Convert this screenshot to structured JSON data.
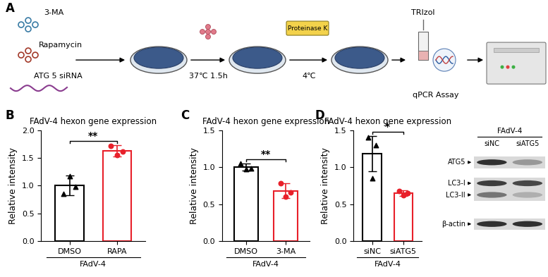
{
  "panel_labels": [
    "A",
    "B",
    "C",
    "D"
  ],
  "diagram": {
    "treatments": [
      "3-MA",
      "Rapamycin",
      "ATG 5 siRNA"
    ],
    "steps": [
      "37℃ 1.5h",
      "Proteinase K",
      "4℃",
      "TRIzol",
      "qPCR Assay"
    ]
  },
  "chart_data": [
    {
      "type": "bar",
      "title": "FAdV-4 hexon gene expression",
      "ylabel": "Relative intensity",
      "xlabel": "FAdV-4",
      "categories": [
        "DMSO",
        "RAPA"
      ],
      "values": [
        1.0,
        1.63
      ],
      "errors": [
        0.18,
        0.1
      ],
      "points": [
        [
          0.85,
          1.17,
          0.98
        ],
        [
          1.72,
          1.55,
          1.62
        ]
      ],
      "colors": [
        "#000000",
        "#e8202a"
      ],
      "markers": [
        "triangle",
        "circle"
      ],
      "ylim": [
        0,
        2.0
      ],
      "yticks": [
        {
          "value": 0,
          "label": "0.0"
        },
        {
          "value": 0.5,
          "label": "0.5"
        },
        {
          "value": 1.0,
          "label": "1.0"
        },
        {
          "value": 1.5,
          "label": "1.5"
        },
        {
          "value": 2.0,
          "label": "2.0"
        }
      ],
      "annotation": "**"
    },
    {
      "type": "bar",
      "title": "FAdV-4 hexon gene expression",
      "ylabel": "Relative intensity",
      "xlabel": "FAdV-4",
      "categories": [
        "DMSO",
        "3-MA"
      ],
      "values": [
        1.0,
        0.68
      ],
      "errors": [
        0.05,
        0.1
      ],
      "points": [
        [
          1.05,
          0.97,
          0.98
        ],
        [
          0.78,
          0.6,
          0.66
        ]
      ],
      "colors": [
        "#000000",
        "#e8202a"
      ],
      "markers": [
        "triangle",
        "circle"
      ],
      "ylim": [
        0,
        1.5
      ],
      "yticks": [
        {
          "value": 0,
          "label": "0.0"
        },
        {
          "value": 0.5,
          "label": "0.5"
        },
        {
          "value": 1.0,
          "label": "1.0"
        },
        {
          "value": 1.5,
          "label": "1.5"
        }
      ],
      "annotation": "**"
    },
    {
      "type": "bar",
      "title": "FAdV-4 hexon gene expression",
      "ylabel": "Relative intensity",
      "xlabel": "FAdV-4",
      "categories": [
        "siNC",
        "siATG5"
      ],
      "values": [
        1.18,
        0.65
      ],
      "errors": [
        0.24,
        0.04
      ],
      "points": [
        [
          1.4,
          0.85,
          1.3
        ],
        [
          0.68,
          0.62,
          0.65
        ]
      ],
      "colors": [
        "#000000",
        "#e8202a"
      ],
      "markers": [
        "triangle",
        "circle"
      ],
      "ylim": [
        0,
        1.5
      ],
      "yticks": [
        {
          "value": 0,
          "label": "0.0"
        },
        {
          "value": 0.5,
          "label": "0.5"
        },
        {
          "value": 1.0,
          "label": "1.0"
        },
        {
          "value": 1.5,
          "label": "1.5"
        }
      ],
      "annotation": "*"
    }
  ],
  "blot": {
    "header": "FAdV-4",
    "lanes": [
      "siNC",
      "siATG5"
    ],
    "rows": [
      "ATG5",
      "LC3-I",
      "LC3-II",
      "β-actin"
    ],
    "band_intensity": [
      [
        0.9,
        0.45
      ],
      [
        0.85,
        0.8
      ],
      [
        0.6,
        0.35
      ],
      [
        0.9,
        0.9
      ]
    ]
  }
}
